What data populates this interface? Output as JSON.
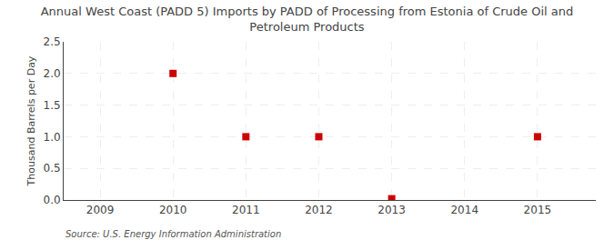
{
  "chart_data": {
    "type": "scatter",
    "title": "Annual West Coast (PADD 5) Imports by PADD of Processing from Estonia of Crude Oil and\nPetroleum Products",
    "ylabel": "Thousand Barrels per Day",
    "annotations": [
      "Source: U.S. Energy Information Administration"
    ],
    "x": [
      2010,
      2011,
      2012,
      2013,
      2015
    ],
    "values": [
      2.0,
      1.0,
      1.0,
      0.02,
      1.0
    ],
    "xlim": [
      2008.5,
      2015.8
    ],
    "xticks": [
      2009,
      2010,
      2011,
      2012,
      2013,
      2014,
      2015
    ],
    "ylim": [
      0.0,
      2.5
    ],
    "yticks": [
      {
        "value": 0.0,
        "label": "0.0"
      },
      0.5,
      {
        "value": 1.0,
        "label": "1.0"
      },
      1.5,
      {
        "value": 2.0,
        "label": "2.0"
      },
      2.5
    ],
    "color": "#cc0000",
    "marker": "square",
    "grid": true
  }
}
